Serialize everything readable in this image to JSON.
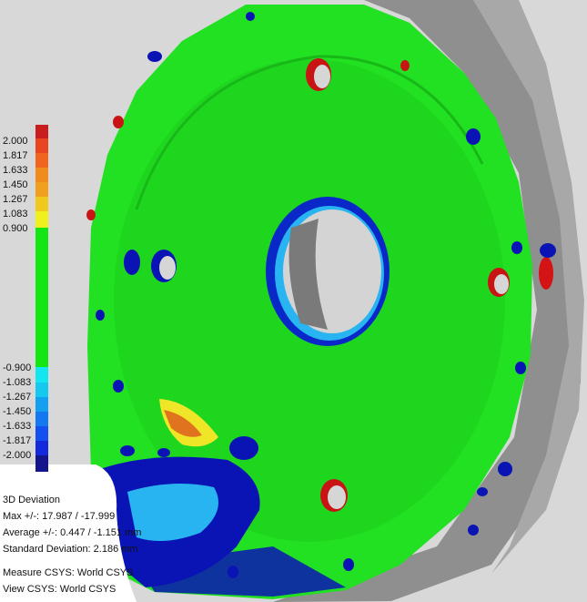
{
  "colors": {
    "background": "#d8d8d8",
    "part_green": "#22e022",
    "shade_gray": "#8c8c8c",
    "deviation_red": "#d41414",
    "deviation_blue": "#0a14b4",
    "deviation_cyan": "#28c8f0",
    "deviation_yellow": "#f0e628"
  },
  "legend": {
    "swatch_colors_top": [
      "#c81e1e",
      "#e8461e",
      "#f0641e",
      "#f08c1e",
      "#f0a01e",
      "#f0c81e",
      "#f0f01e"
    ],
    "swatch_colors_bottom": [
      "#14e6f0",
      "#14c8f0",
      "#14a0f0",
      "#1478f0",
      "#1450f0",
      "#1428dc",
      "#14148c"
    ],
    "nominal_color": "#14e614",
    "labels_top": [
      "2.000",
      "1.817",
      "1.633",
      "1.450",
      "1.267",
      "1.083",
      "0.900"
    ],
    "labels_bottom": [
      "-0.900",
      "-1.083",
      "-1.267",
      "-1.450",
      "-1.633",
      "-1.817",
      "-2.000"
    ]
  },
  "stats": {
    "title": "3D Deviation",
    "max": "Max +/-: 17.987 / -17.999",
    "average": "Average +/-: 0.447 / -1.151 mm",
    "std_dev": "Standard Deviation: 2.186 mm",
    "measure_csys": "Measure CSYS: World CSYS",
    "view_csys": "View CSYS: World CSYS"
  }
}
